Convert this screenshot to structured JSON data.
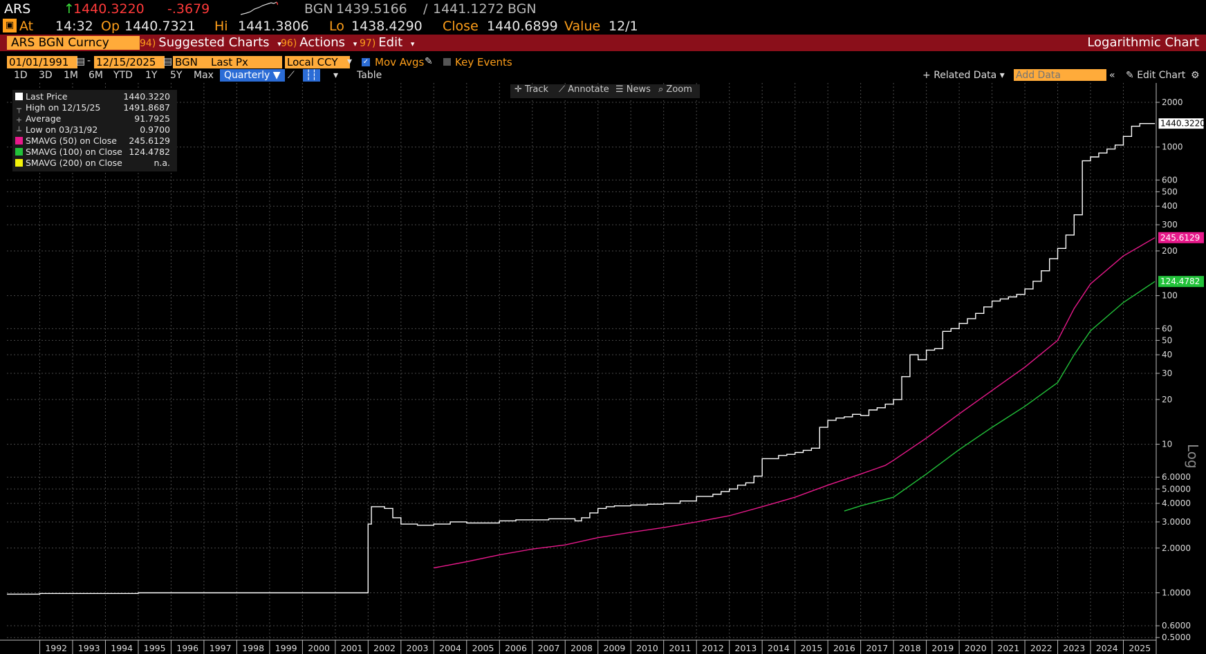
{
  "header": {
    "ticker": "ARS",
    "last": "1440.3220",
    "change": "-.3679",
    "source": "BGN",
    "bid": "1439.5166",
    "ask": "1441.1272",
    "source2": "BGN",
    "at_label": "At",
    "time": "14:32",
    "op_label": "Op",
    "open": "1440.7321",
    "hi_label": "Hi",
    "high": "1441.3806",
    "lo_label": "Lo",
    "low": "1438.4290",
    "close_label": "Close",
    "close": "1440.6899",
    "value_label": "Value",
    "value_date": "12/1"
  },
  "menubar": {
    "security": "ARS BGN Curncy",
    "items": [
      {
        "num": "94)",
        "label": "Suggested Charts"
      },
      {
        "num": "96)",
        "label": "Actions"
      },
      {
        "num": "97)",
        "label": "Edit"
      }
    ],
    "chart_type": "Logarithmic Chart"
  },
  "controls": {
    "start_date": "01/01/1991",
    "end_date": "12/15/2025",
    "source": "BGN",
    "field": "Last Px",
    "currency": "Local CCY",
    "mov_avgs": "Mov Avgs",
    "key_events": "Key Events",
    "periods": [
      "1D",
      "3D",
      "1M",
      "6M",
      "YTD",
      "1Y",
      "5Y",
      "Max"
    ],
    "frequency": "Quarterly",
    "table": "Table",
    "related_data": "Related Data",
    "add_data_placeholder": "Add Data",
    "edit_chart": "Edit Chart"
  },
  "tools": [
    "Track",
    "Annotate",
    "News",
    "Zoom"
  ],
  "legend": [
    {
      "label": "Last Price",
      "value": "1440.3220",
      "color": "#ffffff"
    },
    {
      "label": "High on 12/15/25",
      "value": "1491.8687",
      "color": ""
    },
    {
      "label": "Average",
      "value": "91.7925",
      "color": ""
    },
    {
      "label": "Low on 03/31/92",
      "value": "0.9700",
      "color": ""
    },
    {
      "label": "SMAVG (50)  on Close",
      "value": "245.6129",
      "color": "#e8198b"
    },
    {
      "label": "SMAVG (100)  on Close",
      "value": "124.4782",
      "color": "#22c23a"
    },
    {
      "label": "SMAVG (200)  on Close",
      "value": "n.a.",
      "color": "#f2f20a"
    }
  ],
  "chart_data": {
    "type": "line",
    "yscale": "log",
    "y_axis_label": "Log",
    "ylim": [
      0.48,
      2700
    ],
    "xlim": [
      1991.0,
      2026.0
    ],
    "x_tick_labels": [
      "1992",
      "1993",
      "1994",
      "1995",
      "1996",
      "1997",
      "1998",
      "1999",
      "2000",
      "2001",
      "2002",
      "2003",
      "2004",
      "2005",
      "2006",
      "2007",
      "2008",
      "2009",
      "2010",
      "2011",
      "2012",
      "2013",
      "2014",
      "2015",
      "2016",
      "2017",
      "2018",
      "2019",
      "2020",
      "2021",
      "2022",
      "2023",
      "2024",
      "2025"
    ],
    "y_tick_labels": [
      "2000",
      "1000",
      "600",
      "500",
      "400",
      "300",
      "200",
      "100",
      "60",
      "50",
      "40",
      "30",
      "20",
      "10",
      "6.0000",
      "5.0000",
      "4.0000",
      "3.0000",
      "2.0000",
      "1.0000",
      "0.6000",
      "0.5000"
    ],
    "series": [
      {
        "name": "Last Price",
        "color": "#ffffff",
        "step": true,
        "last_label": "1440.3220",
        "points": [
          [
            1991.0,
            0.98
          ],
          [
            1992.0,
            0.99
          ],
          [
            1995.0,
            1.0
          ],
          [
            1999.0,
            1.0
          ],
          [
            2001.75,
            1.0
          ],
          [
            2002.0,
            2.9
          ],
          [
            2002.1,
            3.8
          ],
          [
            2002.5,
            3.7
          ],
          [
            2002.75,
            3.2
          ],
          [
            2003.0,
            2.9
          ],
          [
            2003.5,
            2.85
          ],
          [
            2004.0,
            2.9
          ],
          [
            2004.5,
            3.0
          ],
          [
            2005.0,
            2.95
          ],
          [
            2005.5,
            2.95
          ],
          [
            2006.0,
            3.05
          ],
          [
            2006.5,
            3.1
          ],
          [
            2007.0,
            3.1
          ],
          [
            2007.5,
            3.15
          ],
          [
            2008.0,
            3.15
          ],
          [
            2008.3,
            3.05
          ],
          [
            2008.5,
            3.2
          ],
          [
            2008.75,
            3.45
          ],
          [
            2009.0,
            3.7
          ],
          [
            2009.25,
            3.8
          ],
          [
            2009.5,
            3.85
          ],
          [
            2010.0,
            3.9
          ],
          [
            2010.5,
            3.95
          ],
          [
            2011.0,
            4.0
          ],
          [
            2011.5,
            4.15
          ],
          [
            2012.0,
            4.45
          ],
          [
            2012.5,
            4.6
          ],
          [
            2012.75,
            4.8
          ],
          [
            2013.0,
            5.0
          ],
          [
            2013.25,
            5.3
          ],
          [
            2013.5,
            5.5
          ],
          [
            2013.75,
            6.1
          ],
          [
            2014.0,
            8.0
          ],
          [
            2014.25,
            8.0
          ],
          [
            2014.5,
            8.4
          ],
          [
            2014.75,
            8.55
          ],
          [
            2015.0,
            8.8
          ],
          [
            2015.25,
            9.1
          ],
          [
            2015.5,
            9.4
          ],
          [
            2015.75,
            13.0
          ],
          [
            2016.0,
            14.5
          ],
          [
            2016.25,
            15.0
          ],
          [
            2016.5,
            15.3
          ],
          [
            2016.75,
            15.9
          ],
          [
            2017.0,
            15.6
          ],
          [
            2017.25,
            17.0
          ],
          [
            2017.5,
            17.6
          ],
          [
            2017.75,
            18.6
          ],
          [
            2018.0,
            20.0
          ],
          [
            2018.25,
            28.5
          ],
          [
            2018.5,
            40.0
          ],
          [
            2018.75,
            37.0
          ],
          [
            2019.0,
            43.0
          ],
          [
            2019.25,
            44.0
          ],
          [
            2019.5,
            57.5
          ],
          [
            2019.75,
            60.0
          ],
          [
            2020.0,
            65.0
          ],
          [
            2020.25,
            70.0
          ],
          [
            2020.5,
            76.0
          ],
          [
            2020.75,
            84.0
          ],
          [
            2021.0,
            92.0
          ],
          [
            2021.25,
            95.0
          ],
          [
            2021.5,
            98.0
          ],
          [
            2021.75,
            102.0
          ],
          [
            2022.0,
            111.0
          ],
          [
            2022.25,
            125.0
          ],
          [
            2022.5,
            147.0
          ],
          [
            2022.75,
            177.0
          ],
          [
            2023.0,
            208.0
          ],
          [
            2023.25,
            256.0
          ],
          [
            2023.5,
            350.0
          ],
          [
            2023.75,
            808.0
          ],
          [
            2024.0,
            858.0
          ],
          [
            2024.25,
            912.0
          ],
          [
            2024.5,
            970.0
          ],
          [
            2024.75,
            1032.0
          ],
          [
            2025.0,
            1180.0
          ],
          [
            2025.25,
            1380.0
          ],
          [
            2025.5,
            1440.0
          ],
          [
            2025.96,
            1440.3
          ]
        ]
      },
      {
        "name": "SMAVG (50) on Close",
        "color": "#e8198b",
        "step": false,
        "last_label": "245.6129",
        "points": [
          [
            2004.0,
            1.47
          ],
          [
            2005.0,
            1.62
          ],
          [
            2006.0,
            1.8
          ],
          [
            2007.0,
            1.97
          ],
          [
            2008.0,
            2.1
          ],
          [
            2009.0,
            2.35
          ],
          [
            2010.0,
            2.55
          ],
          [
            2011.0,
            2.75
          ],
          [
            2012.0,
            3.0
          ],
          [
            2013.0,
            3.3
          ],
          [
            2014.0,
            3.8
          ],
          [
            2015.0,
            4.4
          ],
          [
            2016.0,
            5.3
          ],
          [
            2017.0,
            6.3
          ],
          [
            2017.75,
            7.2
          ],
          [
            2018.0,
            7.8
          ],
          [
            2019.0,
            11.0
          ],
          [
            2020.0,
            16.0
          ],
          [
            2021.0,
            23.0
          ],
          [
            2022.0,
            33.0
          ],
          [
            2023.0,
            50.0
          ],
          [
            2023.5,
            82.0
          ],
          [
            2024.0,
            120.0
          ],
          [
            2025.0,
            185.0
          ],
          [
            2025.96,
            245.6
          ]
        ]
      },
      {
        "name": "SMAVG (100) on Close",
        "color": "#22c23a",
        "step": false,
        "last_label": "124.4782",
        "points": [
          [
            2016.5,
            3.55
          ],
          [
            2017.0,
            3.85
          ],
          [
            2018.0,
            4.4
          ],
          [
            2019.0,
            6.3
          ],
          [
            2020.0,
            9.2
          ],
          [
            2021.0,
            13.0
          ],
          [
            2022.0,
            18.0
          ],
          [
            2023.0,
            26.0
          ],
          [
            2023.5,
            40.0
          ],
          [
            2024.0,
            58.0
          ],
          [
            2025.0,
            90.0
          ],
          [
            2025.96,
            124.5
          ]
        ]
      }
    ]
  }
}
